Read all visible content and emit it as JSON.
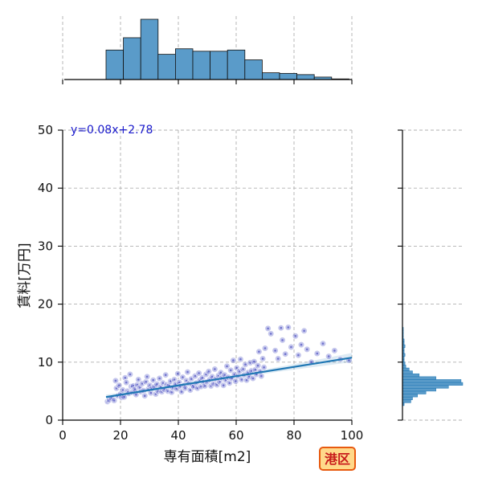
{
  "chart_data": {
    "type": "scatter",
    "equation_label": "y=0.08x+2.78",
    "area_label": "港区",
    "xlabel": "専有面積[m2]",
    "ylabel": "賃料[万円]",
    "xlim": [
      0,
      100
    ],
    "ylim": [
      0,
      50
    ],
    "x_ticks": [
      "0",
      "20",
      "40",
      "60",
      "80",
      "100"
    ],
    "y_ticks": [
      "0",
      "10",
      "20",
      "30",
      "40",
      "50"
    ],
    "grid": true,
    "regression": {
      "slope": 0.08,
      "intercept": 2.78,
      "x_range": [
        15,
        100
      ]
    },
    "colors": {
      "points": "#6e73cf",
      "point_dark": "#2b2fb5",
      "line": "#1f77b4",
      "bars": "#5a9bc9",
      "bar_edge": "#111111",
      "equation": "#1a1acc",
      "badge_fill": "#ffd98a",
      "badge_edge": "#e85a10",
      "badge_text": "#c81c1c"
    },
    "x_histogram": {
      "bin_edges": [
        15,
        21,
        27,
        33,
        39,
        45,
        51,
        57,
        63,
        69,
        75,
        81,
        87,
        93,
        99
      ],
      "counts": [
        48,
        68,
        98,
        41,
        50,
        46,
        46,
        48,
        32,
        11,
        10,
        8,
        4,
        1
      ]
    },
    "y_histogram": {
      "bin_edges": [
        2.5,
        3.0,
        3.5,
        4.0,
        4.5,
        5.0,
        5.5,
        6.0,
        6.5,
        7.0,
        7.5,
        8.0,
        8.5,
        9.0,
        9.5,
        10.0,
        10.5,
        11.0,
        11.5,
        12.0,
        12.5,
        13.0,
        13.5,
        14.0,
        14.5,
        15.0,
        15.5,
        16.0
      ],
      "counts": [
        2,
        10,
        12,
        18,
        28,
        40,
        55,
        72,
        70,
        40,
        20,
        12,
        8,
        4,
        3,
        2,
        2,
        3,
        2,
        2,
        3,
        2,
        2,
        1,
        1,
        1,
        1
      ]
    },
    "points": [
      [
        15.5,
        3.2
      ],
      [
        16.2,
        3.5
      ],
      [
        17.0,
        3.8
      ],
      [
        17.8,
        3.4
      ],
      [
        18.3,
        6.8
      ],
      [
        18.6,
        5.5
      ],
      [
        19.1,
        4.2
      ],
      [
        19.5,
        6.0
      ],
      [
        20.0,
        4.5
      ],
      [
        20.4,
        3.9
      ],
      [
        20.8,
        5.2
      ],
      [
        21.3,
        4.0
      ],
      [
        21.6,
        7.3
      ],
      [
        22.0,
        6.5
      ],
      [
        22.4,
        5.0
      ],
      [
        22.9,
        4.6
      ],
      [
        23.3,
        7.9
      ],
      [
        23.7,
        5.8
      ],
      [
        24.1,
        4.8
      ],
      [
        24.5,
        5.9
      ],
      [
        25.0,
        5.3
      ],
      [
        25.4,
        4.4
      ],
      [
        25.8,
        6.1
      ],
      [
        26.2,
        7.0
      ],
      [
        26.7,
        5.6
      ],
      [
        27.1,
        4.9
      ],
      [
        27.5,
        6.3
      ],
      [
        28.0,
        5.1
      ],
      [
        28.4,
        4.2
      ],
      [
        28.8,
        6.6
      ],
      [
        29.2,
        7.5
      ],
      [
        29.7,
        5.4
      ],
      [
        30.1,
        6.0
      ],
      [
        30.5,
        4.7
      ],
      [
        30.9,
        5.5
      ],
      [
        31.3,
        6.9
      ],
      [
        31.8,
        5.8
      ],
      [
        32.2,
        4.5
      ],
      [
        32.6,
        6.2
      ],
      [
        33.0,
        5.0
      ],
      [
        33.5,
        7.2
      ],
      [
        33.9,
        5.7
      ],
      [
        34.3,
        4.9
      ],
      [
        34.7,
        6.4
      ],
      [
        35.2,
        5.3
      ],
      [
        35.6,
        7.8
      ],
      [
        36.0,
        6.1
      ],
      [
        36.4,
        5.0
      ],
      [
        36.9,
        5.9
      ],
      [
        37.3,
        6.7
      ],
      [
        37.7,
        4.8
      ],
      [
        38.1,
        5.6
      ],
      [
        38.6,
        7.0
      ],
      [
        39.0,
        6.2
      ],
      [
        39.4,
        5.4
      ],
      [
        39.8,
        8.0
      ],
      [
        40.3,
        6.5
      ],
      [
        40.7,
        5.8
      ],
      [
        41.1,
        4.9
      ],
      [
        41.5,
        7.4
      ],
      [
        42.0,
        6.0
      ],
      [
        42.4,
        5.5
      ],
      [
        42.8,
        6.8
      ],
      [
        43.2,
        8.3
      ],
      [
        43.7,
        6.3
      ],
      [
        44.1,
        5.2
      ],
      [
        44.5,
        7.1
      ],
      [
        44.9,
        6.0
      ],
      [
        45.4,
        5.7
      ],
      [
        45.8,
        7.6
      ],
      [
        46.2,
        6.4
      ],
      [
        46.6,
        5.5
      ],
      [
        47.1,
        8.1
      ],
      [
        47.5,
        6.9
      ],
      [
        47.9,
        5.8
      ],
      [
        48.3,
        7.3
      ],
      [
        48.8,
        6.5
      ],
      [
        49.2,
        5.9
      ],
      [
        49.6,
        7.9
      ],
      [
        50.0,
        6.6
      ],
      [
        50.5,
        8.4
      ],
      [
        50.9,
        7.0
      ],
      [
        51.3,
        5.9
      ],
      [
        51.7,
        7.5
      ],
      [
        52.2,
        6.3
      ],
      [
        52.6,
        8.8
      ],
      [
        53.0,
        7.1
      ],
      [
        53.4,
        6.1
      ],
      [
        53.9,
        7.7
      ],
      [
        54.3,
        6.6
      ],
      [
        54.7,
        8.2
      ],
      [
        55.1,
        7.3
      ],
      [
        55.6,
        6.0
      ],
      [
        56.0,
        7.8
      ],
      [
        56.4,
        6.9
      ],
      [
        56.8,
        9.3
      ],
      [
        57.3,
        7.4
      ],
      [
        57.7,
        6.4
      ],
      [
        58.1,
        8.6
      ],
      [
        58.5,
        7.2
      ],
      [
        59.0,
        10.3
      ],
      [
        59.4,
        7.9
      ],
      [
        59.8,
        6.7
      ],
      [
        60.2,
        9.0
      ],
      [
        60.7,
        7.6
      ],
      [
        61.1,
        8.4
      ],
      [
        61.5,
        10.5
      ],
      [
        61.9,
        7.0
      ],
      [
        62.4,
        8.8
      ],
      [
        62.8,
        7.8
      ],
      [
        63.2,
        9.6
      ],
      [
        63.6,
        6.9
      ],
      [
        64.1,
        8.2
      ],
      [
        64.5,
        7.5
      ],
      [
        64.9,
        9.9
      ],
      [
        65.3,
        8.5
      ],
      [
        65.8,
        7.2
      ],
      [
        66.2,
        10.1
      ],
      [
        66.6,
        8.7
      ],
      [
        67.0,
        7.9
      ],
      [
        67.5,
        9.4
      ],
      [
        67.9,
        11.8
      ],
      [
        68.3,
        8.4
      ],
      [
        68.7,
        7.6
      ],
      [
        69.2,
        10.6
      ],
      [
        69.6,
        9.1
      ],
      [
        70.0,
        12.4
      ],
      [
        71.0,
        15.8
      ],
      [
        72.0,
        14.9
      ],
      [
        73.5,
        12.0
      ],
      [
        74.5,
        10.6
      ],
      [
        75.5,
        15.9
      ],
      [
        76.0,
        13.8
      ],
      [
        77.0,
        11.4
      ],
      [
        78.0,
        16.0
      ],
      [
        79.0,
        12.6
      ],
      [
        80.5,
        14.5
      ],
      [
        81.5,
        11.2
      ],
      [
        82.5,
        13.0
      ],
      [
        83.5,
        15.4
      ],
      [
        84.5,
        12.2
      ],
      [
        86.0,
        10.0
      ],
      [
        88.0,
        11.5
      ],
      [
        90.0,
        13.2
      ],
      [
        92.0,
        11.0
      ],
      [
        94.0,
        12.0
      ],
      [
        96.0,
        10.5
      ],
      [
        99.0,
        10.3
      ]
    ]
  }
}
